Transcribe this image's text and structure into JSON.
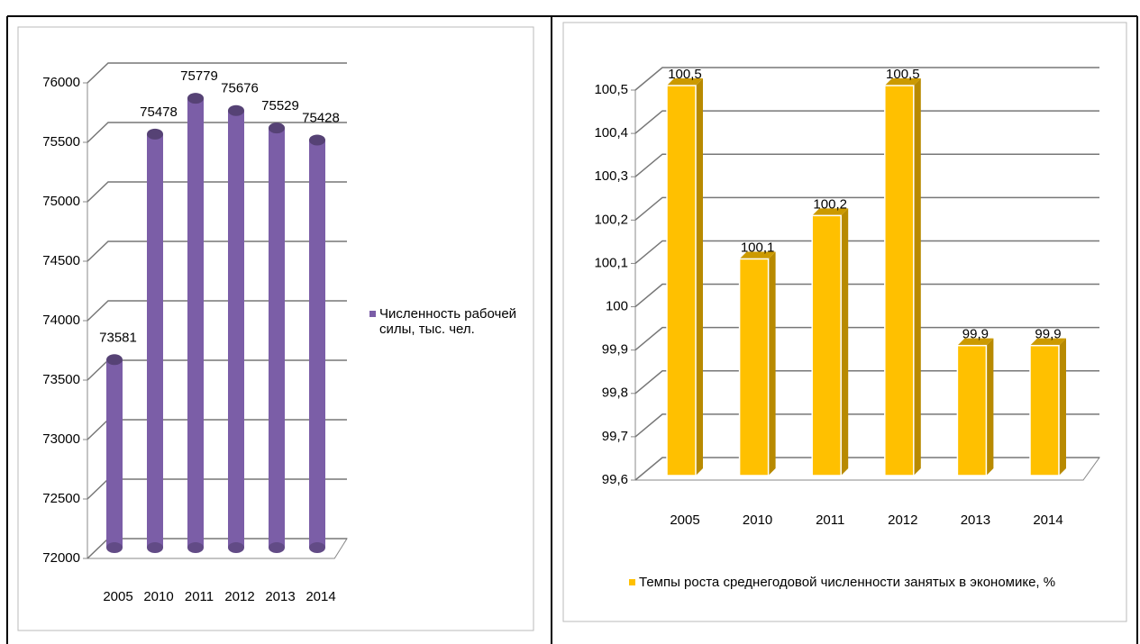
{
  "chart_data": [
    {
      "type": "bar",
      "bar_shape": "cylinder",
      "categories": [
        "2005",
        "2010",
        "2011",
        "2012",
        "2013",
        "2014"
      ],
      "series": [
        {
          "name": "Численность рабочей силы, тыс. чел.",
          "color": "#7b5ea7",
          "values": [
            73581,
            75478,
            75779,
            75676,
            75529,
            75428
          ]
        }
      ],
      "ylim": [
        72000,
        76000
      ],
      "yticks": [
        72000,
        72500,
        73000,
        73500,
        74000,
        74500,
        75000,
        75500,
        76000
      ],
      "grid": true,
      "legend": "right"
    },
    {
      "type": "bar",
      "bar_shape": "box",
      "categories": [
        "2005",
        "2010",
        "2011",
        "2012",
        "2013",
        "2014"
      ],
      "series": [
        {
          "name": "Темпы роста среднегодовой численности занятых в экономике, %",
          "color": "#ffc000",
          "values": [
            100.5,
            100.1,
            100.2,
            100.5,
            99.9,
            99.9
          ],
          "value_labels": [
            "100,5",
            "100,1",
            "100,2",
            "100,5",
            "99,9",
            "99,9"
          ]
        }
      ],
      "ylim": [
        99.6,
        100.5
      ],
      "yticks": [
        {
          "value": 99.6,
          "label": "99,6"
        },
        {
          "value": 99.7,
          "label": "99,7"
        },
        {
          "value": 99.8,
          "label": "99,8"
        },
        {
          "value": 99.9,
          "label": "99,9"
        },
        100,
        {
          "value": 100.1,
          "label": "100,1"
        },
        {
          "value": 100.2,
          "label": "100,2"
        },
        {
          "value": 100.3,
          "label": "100,3"
        },
        {
          "value": 100.4,
          "label": "100,4"
        },
        {
          "value": 100.5,
          "label": "100,5"
        }
      ],
      "grid": true,
      "legend": "bottom"
    }
  ]
}
